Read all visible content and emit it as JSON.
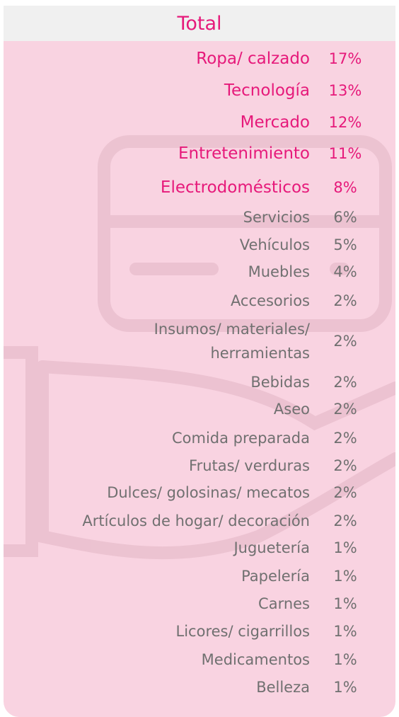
{
  "header": {
    "title": "Total"
  },
  "table": {
    "rows": [
      {
        "label": "Ropa/ calzado",
        "value": "17%",
        "emphasis": true
      },
      {
        "label": "Tecnología",
        "value": "13%",
        "emphasis": true
      },
      {
        "label": "Mercado",
        "value": "12%",
        "emphasis": true
      },
      {
        "label": "Entretenimiento",
        "value": "11%",
        "emphasis": true
      },
      {
        "label": "Electrodomésticos",
        "value": "8%",
        "emphasis": true
      },
      {
        "label": "Servicios",
        "value": "6%"
      },
      {
        "label": "Vehículos",
        "value": "5%"
      },
      {
        "label": "Muebles",
        "value": "4%"
      },
      {
        "label": "Accesorios",
        "value": "2%"
      },
      {
        "label": "Insumos/ materiales/\nherramientas",
        "value": "2%"
      },
      {
        "label": "Bebidas",
        "value": "2%"
      },
      {
        "label": "Aseo",
        "value": "2%"
      },
      {
        "label": "Comida preparada",
        "value": "2%"
      },
      {
        "label": "Frutas/ verduras",
        "value": "2%"
      },
      {
        "label": "Dulces/ golosinas/ mecatos",
        "value": "2%"
      },
      {
        "label": "Artículos de hogar/ decoración",
        "value": "2%"
      },
      {
        "label": "Juguetería",
        "value": "1%"
      },
      {
        "label": "Papelería",
        "value": "1%"
      },
      {
        "label": "Carnes",
        "value": "1%"
      },
      {
        "label": "Licores/ cigarrillos",
        "value": "1%"
      },
      {
        "label": "Medicamentos",
        "value": "1%"
      },
      {
        "label": "Belleza",
        "value": "1%"
      }
    ]
  }
}
